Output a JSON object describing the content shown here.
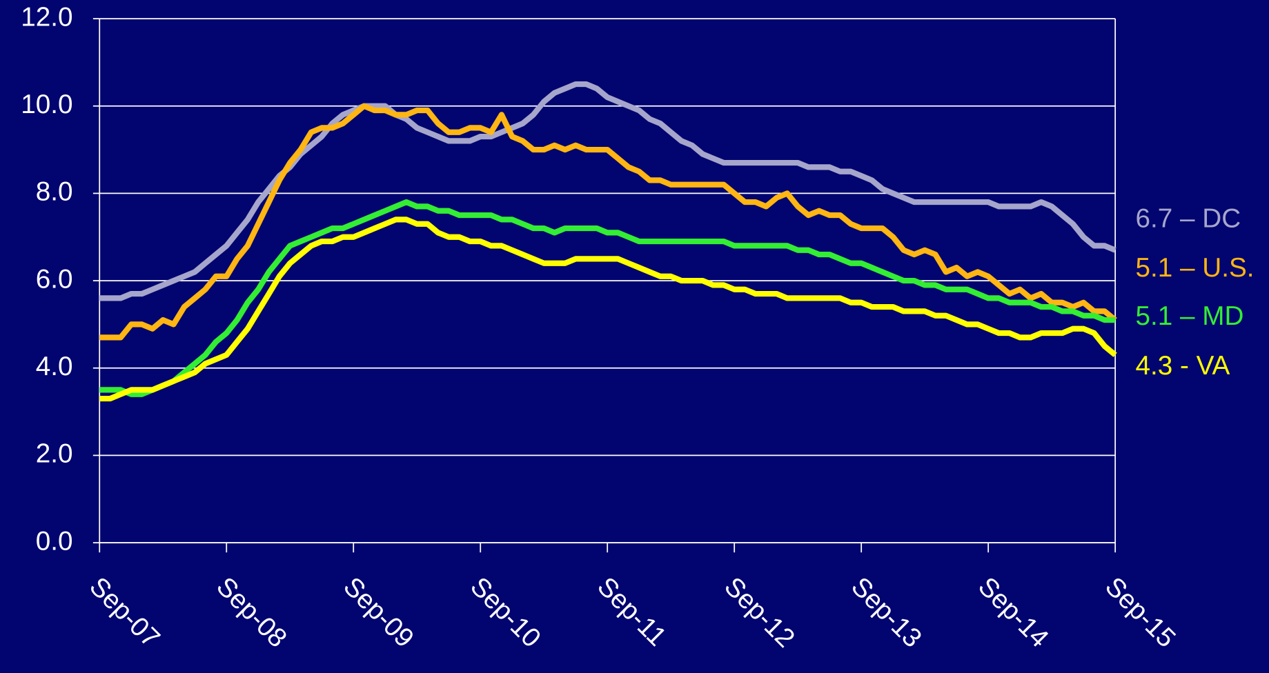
{
  "chart_data": {
    "type": "line",
    "categories": [
      "Sep-07",
      null,
      null,
      null,
      null,
      null,
      null,
      null,
      null,
      null,
      null,
      null,
      "Sep-08",
      null,
      null,
      null,
      null,
      null,
      null,
      null,
      null,
      null,
      null,
      null,
      "Sep-09",
      null,
      null,
      null,
      null,
      null,
      null,
      null,
      null,
      null,
      null,
      null,
      "Sep-10",
      null,
      null,
      null,
      null,
      null,
      null,
      null,
      null,
      null,
      null,
      null,
      "Sep-11",
      null,
      null,
      null,
      null,
      null,
      null,
      null,
      null,
      null,
      null,
      null,
      "Sep-12",
      null,
      null,
      null,
      null,
      null,
      null,
      null,
      null,
      null,
      null,
      null,
      "Sep-13",
      null,
      null,
      null,
      null,
      null,
      null,
      null,
      null,
      null,
      null,
      null,
      "Sep-14",
      null,
      null,
      null,
      null,
      null,
      null,
      null,
      null,
      null,
      null,
      null,
      "Sep-15"
    ],
    "series": [
      {
        "name": "6.7 – DC",
        "color": "#a6a6cc",
        "values": [
          5.6,
          5.6,
          5.6,
          5.7,
          5.7,
          5.8,
          5.9,
          6.0,
          6.1,
          6.2,
          6.4,
          6.6,
          6.8,
          7.1,
          7.4,
          7.8,
          8.1,
          8.4,
          8.6,
          8.9,
          9.1,
          9.3,
          9.6,
          9.8,
          9.9,
          10.0,
          10.0,
          10.0,
          9.8,
          9.7,
          9.5,
          9.4,
          9.3,
          9.2,
          9.2,
          9.2,
          9.3,
          9.3,
          9.4,
          9.5,
          9.6,
          9.8,
          10.1,
          10.3,
          10.4,
          10.5,
          10.5,
          10.4,
          10.2,
          10.1,
          10.0,
          9.9,
          9.7,
          9.6,
          9.4,
          9.2,
          9.1,
          8.9,
          8.8,
          8.7,
          8.7,
          8.7,
          8.7,
          8.7,
          8.7,
          8.7,
          8.7,
          8.6,
          8.6,
          8.6,
          8.5,
          8.5,
          8.4,
          8.3,
          8.1,
          8.0,
          7.9,
          7.8,
          7.8,
          7.8,
          7.8,
          7.8,
          7.8,
          7.8,
          7.8,
          7.7,
          7.7,
          7.7,
          7.7,
          7.8,
          7.7,
          7.5,
          7.3,
          7.0,
          6.8,
          6.8,
          6.7
        ]
      },
      {
        "name": "5.1 – U.S.",
        "color": "#ffb612",
        "values": [
          4.7,
          4.7,
          4.7,
          5.0,
          5.0,
          4.9,
          5.1,
          5.0,
          5.4,
          5.6,
          5.8,
          6.1,
          6.1,
          6.5,
          6.8,
          7.3,
          7.8,
          8.3,
          8.7,
          9.0,
          9.4,
          9.5,
          9.5,
          9.6,
          9.8,
          10.0,
          9.9,
          9.9,
          9.8,
          9.8,
          9.9,
          9.9,
          9.6,
          9.4,
          9.4,
          9.5,
          9.5,
          9.4,
          9.8,
          9.3,
          9.2,
          9.0,
          9.0,
          9.1,
          9.0,
          9.1,
          9.0,
          9.0,
          9.0,
          8.8,
          8.6,
          8.5,
          8.3,
          8.3,
          8.2,
          8.2,
          8.2,
          8.2,
          8.2,
          8.2,
          8.0,
          7.8,
          7.8,
          7.7,
          7.9,
          8.0,
          7.7,
          7.5,
          7.6,
          7.5,
          7.5,
          7.3,
          7.2,
          7.2,
          7.2,
          7.0,
          6.7,
          6.6,
          6.7,
          6.6,
          6.2,
          6.3,
          6.1,
          6.2,
          6.1,
          5.9,
          5.7,
          5.8,
          5.6,
          5.7,
          5.5,
          5.5,
          5.4,
          5.5,
          5.3,
          5.3,
          5.1
        ]
      },
      {
        "name": "5.1 – MD",
        "color": "#33ee33",
        "values": [
          3.5,
          3.5,
          3.5,
          3.4,
          3.4,
          3.5,
          3.6,
          3.7,
          3.9,
          4.1,
          4.3,
          4.6,
          4.8,
          5.1,
          5.5,
          5.8,
          6.2,
          6.5,
          6.8,
          6.9,
          7.0,
          7.1,
          7.2,
          7.2,
          7.3,
          7.4,
          7.5,
          7.6,
          7.7,
          7.8,
          7.7,
          7.7,
          7.6,
          7.6,
          7.5,
          7.5,
          7.5,
          7.5,
          7.4,
          7.4,
          7.3,
          7.2,
          7.2,
          7.1,
          7.2,
          7.2,
          7.2,
          7.2,
          7.1,
          7.1,
          7.0,
          6.9,
          6.9,
          6.9,
          6.9,
          6.9,
          6.9,
          6.9,
          6.9,
          6.9,
          6.8,
          6.8,
          6.8,
          6.8,
          6.8,
          6.8,
          6.7,
          6.7,
          6.6,
          6.6,
          6.5,
          6.4,
          6.4,
          6.3,
          6.2,
          6.1,
          6.0,
          6.0,
          5.9,
          5.9,
          5.8,
          5.8,
          5.8,
          5.7,
          5.6,
          5.6,
          5.5,
          5.5,
          5.5,
          5.4,
          5.4,
          5.3,
          5.3,
          5.2,
          5.2,
          5.1,
          5.1
        ]
      },
      {
        "name": "4.3  - VA",
        "color": "#ffff00",
        "values": [
          3.3,
          3.3,
          3.4,
          3.5,
          3.5,
          3.5,
          3.6,
          3.7,
          3.8,
          3.9,
          4.1,
          4.2,
          4.3,
          4.6,
          4.9,
          5.3,
          5.7,
          6.1,
          6.4,
          6.6,
          6.8,
          6.9,
          6.9,
          7.0,
          7.0,
          7.1,
          7.2,
          7.3,
          7.4,
          7.4,
          7.3,
          7.3,
          7.1,
          7.0,
          7.0,
          6.9,
          6.9,
          6.8,
          6.8,
          6.7,
          6.6,
          6.5,
          6.4,
          6.4,
          6.4,
          6.5,
          6.5,
          6.5,
          6.5,
          6.5,
          6.4,
          6.3,
          6.2,
          6.1,
          6.1,
          6.0,
          6.0,
          6.0,
          5.9,
          5.9,
          5.8,
          5.8,
          5.7,
          5.7,
          5.7,
          5.6,
          5.6,
          5.6,
          5.6,
          5.6,
          5.6,
          5.5,
          5.5,
          5.4,
          5.4,
          5.4,
          5.3,
          5.3,
          5.3,
          5.2,
          5.2,
          5.1,
          5.0,
          5.0,
          4.9,
          4.8,
          4.8,
          4.7,
          4.7,
          4.8,
          4.8,
          4.8,
          4.9,
          4.9,
          4.8,
          4.5,
          4.3
        ]
      }
    ],
    "ylim": [
      0,
      12
    ],
    "yticks": [
      {
        "value": 0,
        "label": "0.0"
      },
      {
        "value": 2,
        "label": "2.0"
      },
      {
        "value": 4,
        "label": "4.0"
      },
      {
        "value": 6,
        "label": "6.0"
      },
      {
        "value": 8,
        "label": "8.0"
      },
      {
        "value": 10,
        "label": "10.0"
      },
      {
        "value": 12,
        "label": "12.0"
      }
    ],
    "grid": true
  }
}
